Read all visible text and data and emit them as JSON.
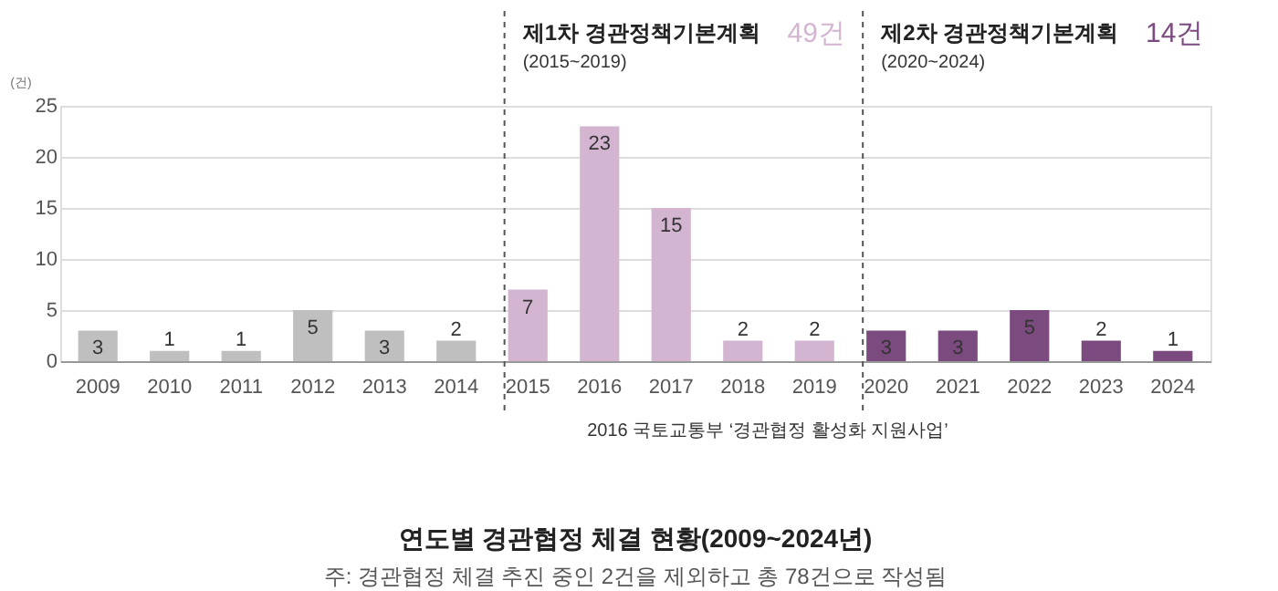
{
  "chart_data": {
    "type": "bar",
    "title": "연도별 경관협정 체결 현황(2009~2024년)",
    "subtitle": "주: 경관협정 체결 추진 중인 2건을 제외하고 총 78건으로 작성됨",
    "ylabel": "(건)",
    "categories": [
      "2009",
      "2010",
      "2011",
      "2012",
      "2013",
      "2014",
      "2015",
      "2016",
      "2017",
      "2018",
      "2019",
      "2020",
      "2021",
      "2022",
      "2023",
      "2024"
    ],
    "values": [
      3,
      1,
      1,
      5,
      3,
      2,
      7,
      23,
      15,
      2,
      2,
      3,
      3,
      5,
      2,
      1
    ],
    "colors": [
      "#bfbfbf",
      "#bfbfbf",
      "#bfbfbf",
      "#bfbfbf",
      "#bfbfbf",
      "#bfbfbf",
      "#d4b5d1",
      "#d4b5d1",
      "#d4b5d1",
      "#d4b5d1",
      "#d4b5d1",
      "#7b4a7f",
      "#7b4a7f",
      "#7b4a7f",
      "#7b4a7f",
      "#7b4a7f"
    ],
    "ylim": [
      0,
      25
    ],
    "yticks": [
      0,
      5,
      10,
      15,
      20,
      25
    ],
    "grid": "y",
    "data_labels": true,
    "ref_lines": [
      {
        "axis": "x",
        "value": "2015",
        "label": "제1차 경관정책기본계획",
        "line_style": "dashed"
      },
      {
        "axis": "x",
        "value": "2020",
        "label": "제2차 경관정책기본계획",
        "line_style": "dashed"
      }
    ],
    "annotations": [
      "(2015~2019)",
      "49건",
      "(2020~2024)",
      "14건",
      "2016 국토교통부 ‘경관협정 활성화 지원사업’"
    ]
  }
}
